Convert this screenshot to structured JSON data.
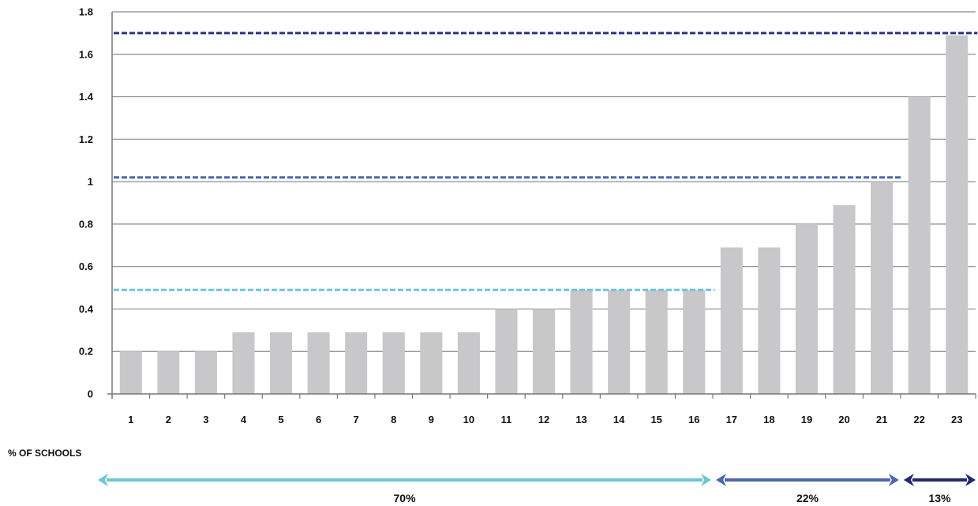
{
  "chart_data": {
    "type": "bar",
    "categories": [
      "1",
      "2",
      "3",
      "4",
      "5",
      "6",
      "7",
      "8",
      "9",
      "10",
      "11",
      "12",
      "13",
      "14",
      "15",
      "16",
      "17",
      "18",
      "19",
      "20",
      "21",
      "22",
      "23"
    ],
    "values": [
      0.2,
      0.2,
      0.2,
      0.29,
      0.29,
      0.29,
      0.29,
      0.29,
      0.29,
      0.29,
      0.4,
      0.4,
      0.49,
      0.49,
      0.49,
      0.49,
      0.69,
      0.69,
      0.8,
      0.89,
      1.0,
      1.4,
      1.69
    ],
    "ylim": [
      0,
      1.8
    ],
    "yticks": [
      "0",
      "0.2",
      "0.4",
      "0.6",
      "0.8",
      "1",
      "1.2",
      "1.4",
      "1.6",
      "1.8"
    ],
    "grid": true,
    "bar_color": "#c8c8ca",
    "reference_lines": [
      {
        "value": 0.49,
        "from_category": "1",
        "to_category": "16",
        "color": "#6cc6d6"
      },
      {
        "value": 1.02,
        "from_category": "1",
        "to_category": "21",
        "color": "#4a67b0"
      },
      {
        "value": 1.7,
        "from_category": "1",
        "to_category": "23",
        "color": "#2e2f86"
      }
    ],
    "groups_label": "% OF SCHOOLS",
    "groups": [
      {
        "label": "70%",
        "from_category": "1",
        "to_category": "16",
        "color": "#6cc6d6"
      },
      {
        "label": "22%",
        "from_category": "17",
        "to_category": "21",
        "color": "#4a67b0"
      },
      {
        "label": "13%",
        "from_category": "22",
        "to_category": "23",
        "color": "#232770"
      }
    ]
  }
}
